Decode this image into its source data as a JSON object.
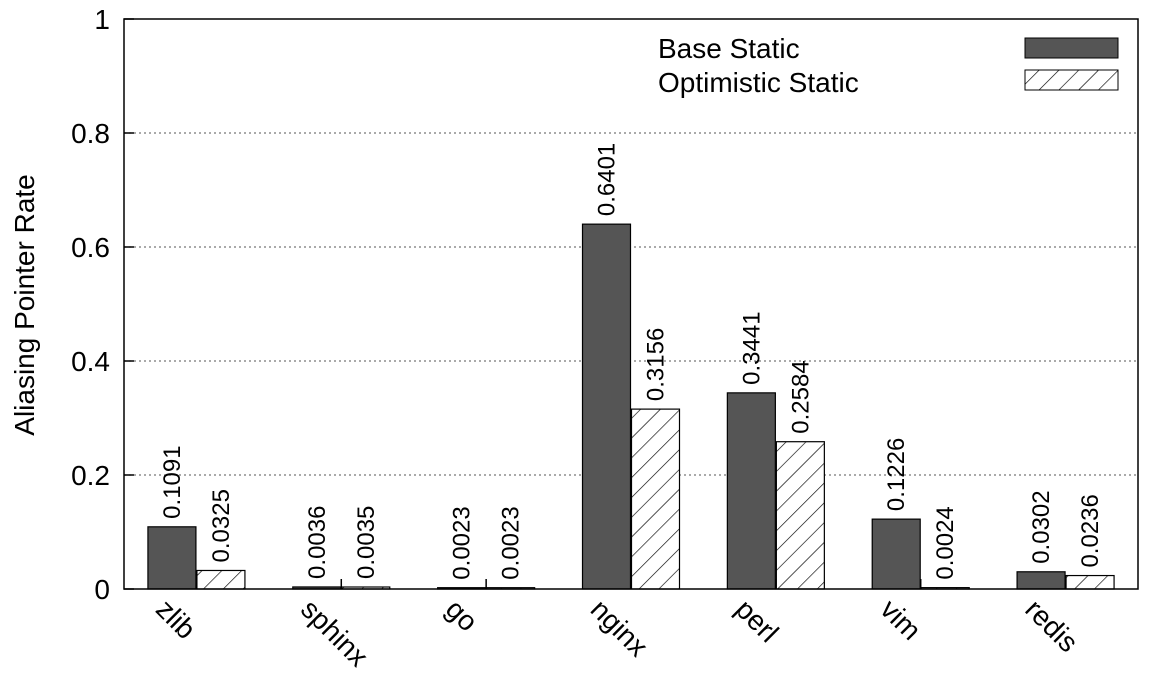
{
  "chart_data": {
    "type": "bar",
    "title": "",
    "xlabel": "",
    "ylabel": "Aliasing Pointer Rate",
    "ylim": [
      0,
      1
    ],
    "yticks": [
      "0",
      "0.2",
      "0.4",
      "0.6",
      "0.8",
      "1"
    ],
    "grid": true,
    "legend_position": "top-right",
    "categories": [
      "zlib",
      "sphinx",
      "go",
      "nginx",
      "perl",
      "vim",
      "redis"
    ],
    "series": [
      {
        "name": "Base Static",
        "values": [
          0.1091,
          0.0036,
          0.0023,
          0.6401,
          0.3441,
          0.1226,
          0.0302
        ],
        "labels": [
          "0.1091",
          "0.0036",
          "0.0023",
          "0.6401",
          "0.3441",
          "0.1226",
          "0.0302"
        ],
        "color": "#555555",
        "pattern": "solid"
      },
      {
        "name": "Optimistic Static",
        "values": [
          0.0325,
          0.0035,
          0.0023,
          0.3156,
          0.2584,
          0.0024,
          0.0236
        ],
        "labels": [
          "0.0325",
          "0.0035",
          "0.0023",
          "0.3156",
          "0.2584",
          "0.0024",
          "0.0236"
        ],
        "color": "#ffffff",
        "pattern": "hatch"
      }
    ]
  }
}
